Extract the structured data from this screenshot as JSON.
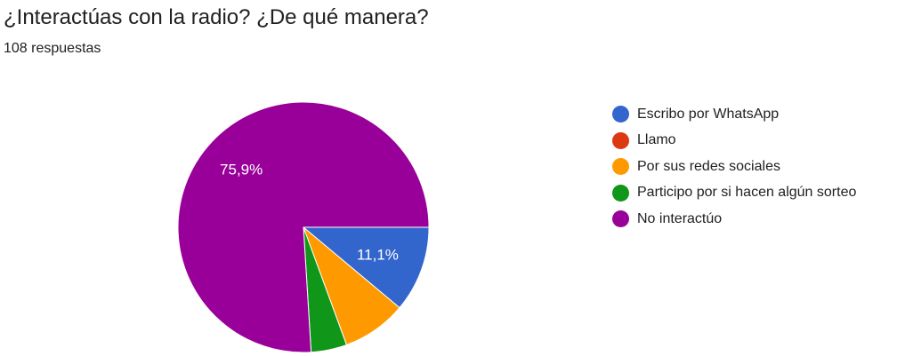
{
  "title": "¿Interactúas con la radio? ¿De qué manera?",
  "subtitle": "108 respuestas",
  "chart_data": {
    "type": "pie",
    "title": "¿Interactúas con la radio? ¿De qué manera?",
    "subtitle": "108 respuestas",
    "legend_position": "right",
    "slices": [
      {
        "label": "Escribo por WhatsApp",
        "value": 11.1,
        "color": "#3366cc",
        "data_label": "11,1%"
      },
      {
        "label": "Llamo",
        "value": 0.0,
        "color": "#dc3912",
        "data_label": ""
      },
      {
        "label": "Por sus redes sociales",
        "value": 8.3,
        "color": "#ff9900",
        "data_label": ""
      },
      {
        "label": "Participo por si hacen algún sorteo",
        "value": 4.6,
        "color": "#109618",
        "data_label": ""
      },
      {
        "label": "No interactúo",
        "value": 75.9,
        "color": "#990099",
        "data_label": "75,9%"
      }
    ]
  }
}
